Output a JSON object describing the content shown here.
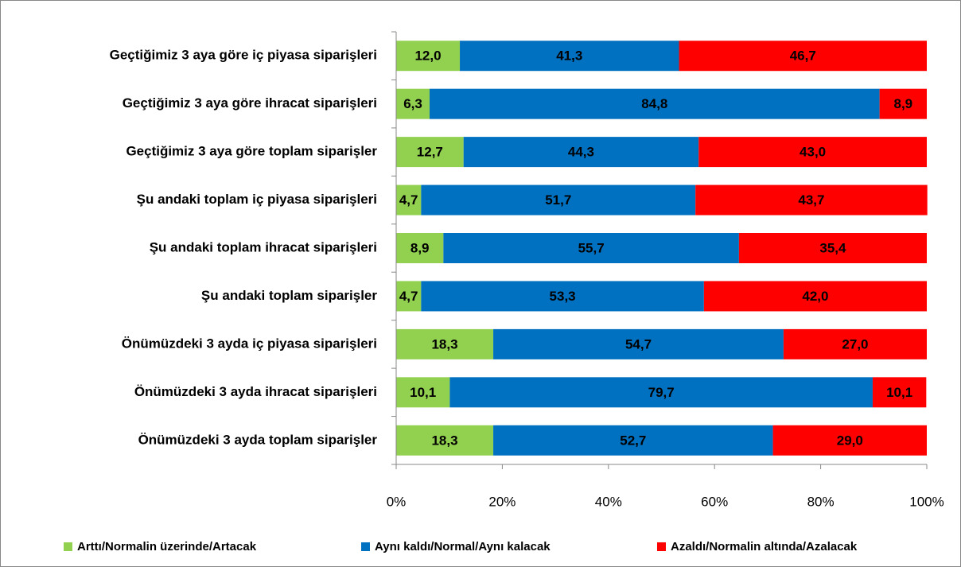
{
  "chart_data": {
    "type": "bar",
    "orientation": "horizontal",
    "stacked": true,
    "categories": [
      "Geçtiğimiz 3 aya göre iç piyasa siparişleri",
      "Geçtiğimiz 3 aya göre ihracat siparişleri",
      "Geçtiğimiz 3 aya göre toplam siparişler",
      "Şu andaki toplam iç piyasa siparişleri",
      "Şu andaki toplam ihracat siparişleri",
      "Şu andaki toplam siparişler",
      "Önümüzdeki 3 ayda iç piyasa siparişleri",
      "Önümüzdeki 3 ayda ihracat siparişleri",
      "Önümüzdeki 3 ayda toplam siparişler"
    ],
    "series": [
      {
        "name": "Arttı/Normalin üzerinde/Artacak",
        "color": "#92d050",
        "values": [
          12.0,
          6.3,
          12.7,
          4.7,
          8.9,
          4.7,
          18.3,
          10.1,
          18.3
        ],
        "value_labels": [
          "12,0",
          "6,3",
          "12,7",
          "4,7",
          "8,9",
          "4,7",
          "18,3",
          "10,1",
          "18,3"
        ]
      },
      {
        "name": "Aynı kaldı/Normal/Aynı kalacak",
        "color": "#0070c0",
        "values": [
          41.3,
          84.8,
          44.3,
          51.7,
          55.7,
          53.3,
          54.7,
          79.7,
          52.7
        ],
        "value_labels": [
          "41,3",
          "84,8",
          "44,3",
          "51,7",
          "55,7",
          "53,3",
          "54,7",
          "79,7",
          "52,7"
        ]
      },
      {
        "name": "Azaldı/Normalin altında/Azalacak",
        "color": "#ff0000",
        "values": [
          46.7,
          8.9,
          43.0,
          43.7,
          35.4,
          42.0,
          27.0,
          10.1,
          29.0
        ],
        "value_labels": [
          "46,7",
          "8,9",
          "43,0",
          "43,7",
          "35,4",
          "42,0",
          "27,0",
          "10,1",
          "29,0"
        ]
      }
    ],
    "xlim": [
      0,
      100
    ],
    "xticks": [
      {
        "value": 0,
        "label": "0%"
      },
      {
        "value": 20,
        "label": "20%"
      },
      {
        "value": 40,
        "label": "40%"
      },
      {
        "value": 60,
        "label": "60%"
      },
      {
        "value": 80,
        "label": "80%"
      },
      {
        "value": 100,
        "label": "100%"
      }
    ],
    "legend": "bottom"
  }
}
